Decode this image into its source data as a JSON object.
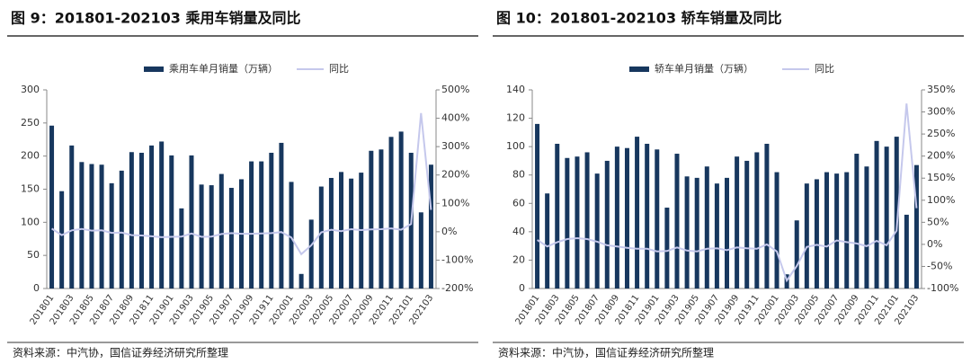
{
  "chart_data": [
    {
      "type": "bar",
      "title": "图 9：201801-202103 乘用车销量及同比",
      "source": "资料来源：中汽协，国信证券经济研究所整理",
      "categories": [
        "201801",
        null,
        "201803",
        null,
        "201805",
        null,
        "201807",
        null,
        "201809",
        null,
        "201811",
        null,
        "201901",
        null,
        "201903",
        null,
        "201905",
        null,
        "201907",
        null,
        "201909",
        null,
        "201911",
        null,
        "202001",
        null,
        "202003",
        null,
        "202005",
        null,
        "202007",
        null,
        "202009",
        null,
        "202011",
        null,
        "202101",
        null,
        "202103"
      ],
      "series": [
        {
          "name": "乘用车单月销量（万辆）",
          "color": "#17375e",
          "values": [
            246,
            147,
            216,
            191,
            188,
            187,
            159,
            178,
            206,
            205,
            216,
            222,
            201,
            121,
            201,
            157,
            156,
            173,
            152,
            165,
            192,
            192,
            205,
            220,
            161,
            22,
            104,
            154,
            167,
            176,
            166,
            175,
            208,
            210,
            229,
            237,
            205,
            115,
            187
          ]
        },
        {
          "name": "同比",
          "color": "#c5c8ec",
          "type": "line",
          "axis": "y2",
          "values": [
            11,
            -12,
            5,
            10,
            4,
            5,
            -4,
            -3,
            -12,
            -13,
            -16,
            -19,
            -18,
            -17,
            -6,
            -18,
            -17,
            -8,
            -5,
            -7,
            -7,
            -6,
            -5,
            -1,
            -20,
            -79,
            -48,
            -2,
            7,
            2,
            9,
            6,
            8,
            9,
            12,
            7,
            27,
            418,
            77
          ]
        }
      ],
      "ylim": [
        0,
        300
      ],
      "yticks": [
        0,
        50,
        100,
        150,
        200,
        250,
        300
      ],
      "y2lim": [
        -200,
        500
      ],
      "y2ticks": [
        {
          "value": -200,
          "label": "-200%"
        },
        {
          "value": -100,
          "label": "-100%"
        },
        {
          "value": 0,
          "label": "0%"
        },
        {
          "value": 100,
          "label": "100%"
        },
        {
          "value": 200,
          "label": "200%"
        },
        {
          "value": 300,
          "label": "300%"
        },
        {
          "value": 400,
          "label": "400%"
        },
        {
          "value": 500,
          "label": "500%"
        }
      ],
      "legend": "top"
    },
    {
      "type": "bar",
      "title": "图 10：201801-202103 轿车销量及同比",
      "source": "资料来源：中汽协，国信证券经济研究所整理",
      "categories": [
        "201801",
        null,
        "201803",
        null,
        "201805",
        null,
        "201807",
        null,
        "201809",
        null,
        "201811",
        null,
        "201901",
        null,
        "201903",
        null,
        "201905",
        null,
        "201907",
        null,
        "201909",
        null,
        "201911",
        null,
        "202001",
        null,
        "202003",
        null,
        "202005",
        null,
        "202007",
        null,
        "202009",
        null,
        "202011",
        null,
        "202101",
        null,
        "202103"
      ],
      "series": [
        {
          "name": "轿车单月销量（万辆）",
          "color": "#17375e",
          "values": [
            116,
            67,
            102,
            92,
            93,
            96,
            81,
            90,
            100,
            99,
            107,
            102,
            98,
            57,
            95,
            79,
            78,
            86,
            74,
            78,
            93,
            90,
            96,
            102,
            82,
            10,
            48,
            74,
            77,
            82,
            81,
            82,
            95,
            86,
            104,
            100,
            107,
            52,
            87
          ]
        },
        {
          "name": "同比",
          "color": "#c5c8ec",
          "type": "line",
          "axis": "y2",
          "values": [
            10,
            -5,
            5,
            12,
            14,
            12,
            6,
            -2,
            -5,
            -8,
            -10,
            -10,
            -16,
            -15,
            -7,
            -14,
            -16,
            -10,
            -9,
            -13,
            -7,
            -9,
            -10,
            0,
            -16,
            -82,
            -49,
            -6,
            -1,
            -5,
            9,
            5,
            2,
            -4,
            8,
            -2,
            31,
            319,
            82
          ]
        }
      ],
      "ylim": [
        0,
        140
      ],
      "yticks": [
        0,
        20,
        40,
        60,
        80,
        100,
        120,
        140
      ],
      "y2lim": [
        -100,
        350
      ],
      "y2ticks": [
        {
          "value": -100,
          "label": "-100%"
        },
        {
          "value": -50,
          "label": "-50%"
        },
        {
          "value": 0,
          "label": "0%"
        },
        {
          "value": 50,
          "label": "50%"
        },
        {
          "value": 100,
          "label": "100%"
        },
        {
          "value": 150,
          "label": "150%"
        },
        {
          "value": 200,
          "label": "200%"
        },
        {
          "value": 250,
          "label": "250%"
        },
        {
          "value": 300,
          "label": "300%"
        },
        {
          "value": 350,
          "label": "350%"
        }
      ],
      "legend": "top"
    }
  ]
}
